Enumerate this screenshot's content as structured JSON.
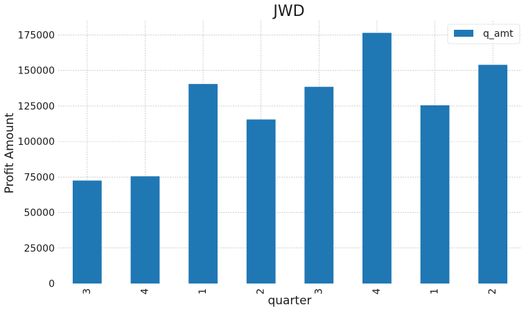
{
  "chart_data": {
    "type": "bar",
    "title": "JWD",
    "xlabel": "quarter",
    "ylabel": "Profit Amount",
    "categories": [
      "3",
      "4",
      "1",
      "2",
      "3",
      "4",
      "1",
      "2"
    ],
    "series": [
      {
        "name": "q_amt",
        "values": [
          72500,
          75500,
          140500,
          115500,
          138500,
          176500,
          125500,
          154000
        ]
      }
    ],
    "ylim": [
      0,
      185000
    ],
    "yticks": [
      0,
      25000,
      50000,
      75000,
      100000,
      125000,
      150000,
      175000
    ],
    "grid": true,
    "legend_position": "top-right",
    "bar_color": "#1f77b4"
  }
}
